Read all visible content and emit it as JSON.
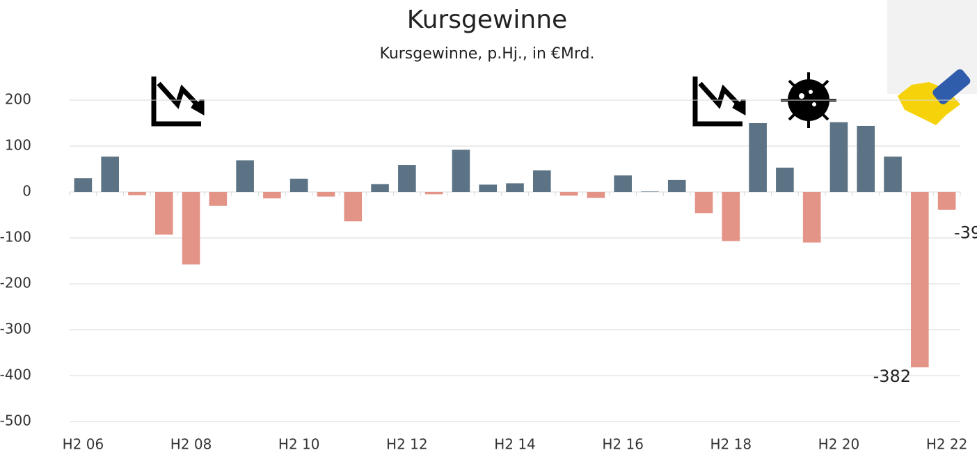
{
  "chart_data": {
    "type": "bar",
    "title": "Kursgewinne",
    "subtitle": "Kursgewinne, p.Hj., in €Mrd.",
    "categories": [
      "H2 06",
      null,
      null,
      null,
      "H2 08",
      null,
      null,
      null,
      "H2 10",
      null,
      null,
      null,
      "H2 12",
      null,
      null,
      null,
      "H2 14",
      null,
      null,
      null,
      "H2 16",
      null,
      null,
      null,
      "H2 18",
      null,
      null,
      null,
      "H2 20",
      null,
      null,
      null,
      "H2 22"
    ],
    "values": [
      30,
      77,
      -7,
      -93,
      -158,
      -30,
      69,
      -14,
      29,
      -10,
      -64,
      17,
      59,
      -5,
      92,
      16,
      19,
      47,
      -8,
      -13,
      36,
      1,
      26,
      -46,
      -107,
      150,
      53,
      -110,
      152,
      144,
      77,
      -382,
      -39
    ],
    "value_labels": [
      null,
      null,
      null,
      null,
      null,
      null,
      null,
      null,
      null,
      null,
      null,
      null,
      null,
      null,
      null,
      null,
      null,
      null,
      null,
      null,
      null,
      null,
      null,
      null,
      null,
      null,
      null,
      null,
      null,
      null,
      null,
      "-382",
      "-39"
    ],
    "color_positive": "#5b7384",
    "color_negative": "#e39487",
    "ylim": [
      -500,
      220
    ],
    "yticks": [
      -500,
      -400,
      -300,
      -200,
      -100,
      0,
      100,
      200
    ],
    "grid": true
  }
}
